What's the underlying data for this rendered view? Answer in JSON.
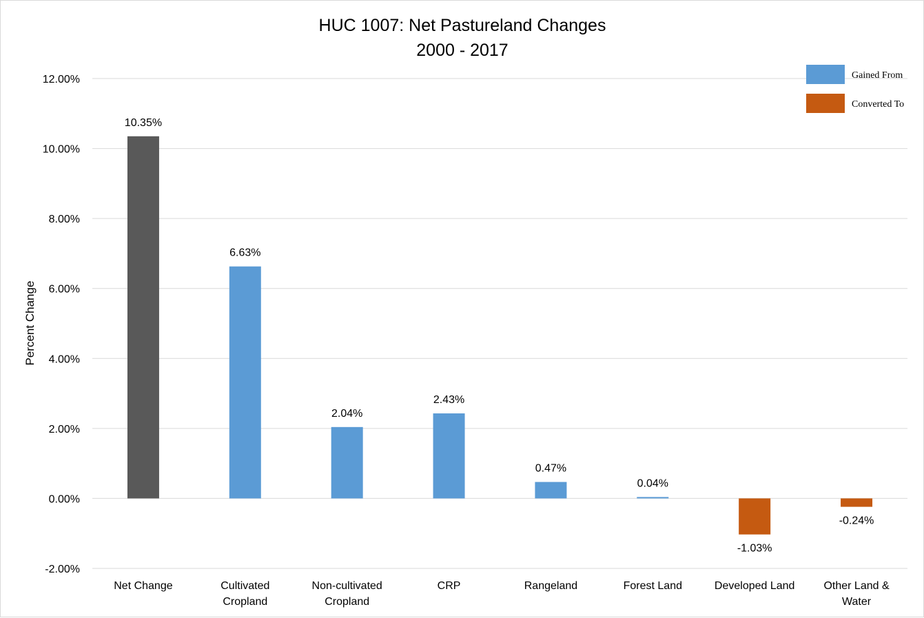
{
  "chart_data": {
    "type": "bar",
    "title": "HUC 1007: Net Pastureland Changes",
    "subtitle": "2000 - 2017",
    "xlabel": "",
    "ylabel": "Percent Change",
    "ylim": [
      -2,
      12
    ],
    "yticks": [
      -2,
      0,
      2,
      4,
      6,
      8,
      10,
      12
    ],
    "ytick_labels": [
      "-2.00%",
      "0.00%",
      "2.00%",
      "4.00%",
      "6.00%",
      "8.00%",
      "10.00%",
      "12.00%"
    ],
    "grid": true,
    "legend_position": "top-right",
    "categories": [
      [
        "Net Change"
      ],
      [
        "Cultivated",
        "Cropland"
      ],
      [
        "Non-cultivated",
        "Cropland"
      ],
      [
        "CRP"
      ],
      [
        "Rangeland"
      ],
      [
        "Forest Land"
      ],
      [
        "Developed Land"
      ],
      [
        "Other Land &",
        "Water"
      ]
    ],
    "values": [
      10.35,
      6.63,
      2.04,
      2.43,
      0.47,
      0.04,
      -1.03,
      -0.24
    ],
    "data_labels": [
      "10.35%",
      "6.63%",
      "2.04%",
      "2.43%",
      "0.47%",
      "0.04%",
      "-1.03%",
      "-0.24%"
    ],
    "bar_colors": [
      "#595959",
      "#5b9bd5",
      "#5b9bd5",
      "#5b9bd5",
      "#5b9bd5",
      "#5b9bd5",
      "#c55a11",
      "#c55a11"
    ],
    "legend": [
      {
        "label": "Gained From",
        "color": "#5b9bd5"
      },
      {
        "label": "Converted To",
        "color": "#c55a11"
      }
    ],
    "gridline_color": "#d9d9d9"
  }
}
